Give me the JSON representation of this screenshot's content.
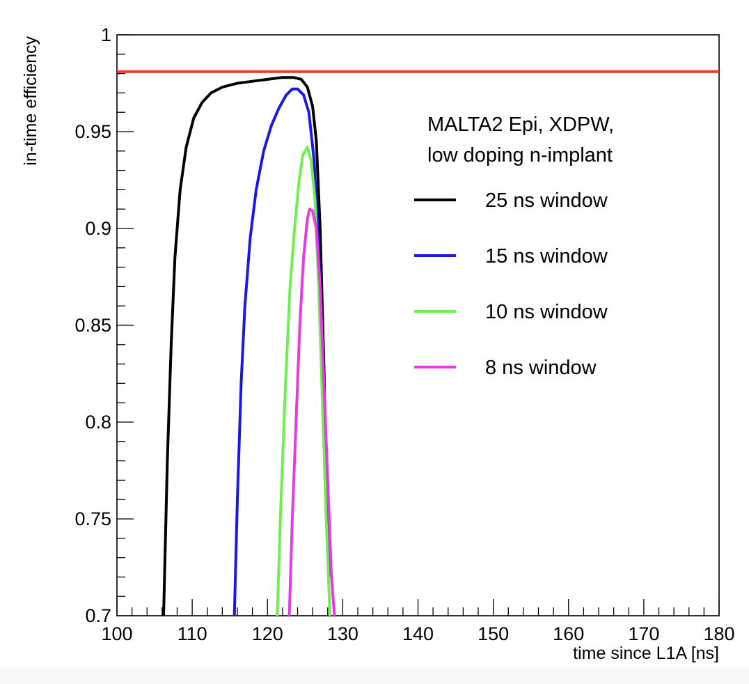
{
  "chart_data": {
    "type": "line",
    "xlabel": "time since L1A [ns]",
    "ylabel": "in-time efficiency",
    "xlim": [
      100,
      180
    ],
    "ylim": [
      0.7,
      1.0
    ],
    "x_ticks": [
      100,
      110,
      120,
      130,
      140,
      150,
      160,
      170,
      180
    ],
    "y_ticks": [
      0.7,
      0.75,
      0.8,
      0.85,
      0.9,
      0.95,
      1.0
    ],
    "x_tick_labels": [
      "100",
      "110",
      "120",
      "130",
      "140",
      "150",
      "160",
      "170",
      "180"
    ],
    "y_tick_labels": [
      "0.7",
      "0.75",
      "0.8",
      "0.85",
      "0.9",
      "0.95",
      "1"
    ],
    "legend_header": [
      "MALTA2 Epi, XDPW,",
      "low doping n-implant"
    ],
    "legend_position": "top-right",
    "grid": false,
    "reference_line": {
      "y": 0.981,
      "color": "#e8412c"
    },
    "series": [
      {
        "name": "25 ns window",
        "color": "#000000",
        "x": [
          106.2,
          106.7,
          107.2,
          107.7,
          108.4,
          109.2,
          110.2,
          111.3,
          112.5,
          114.0,
          116.0,
          118.0,
          120.0,
          122.0,
          123.5,
          124.5,
          125.3,
          126.0,
          126.5,
          127.0,
          127.5,
          128.0
        ],
        "y": [
          0.7,
          0.78,
          0.84,
          0.885,
          0.92,
          0.942,
          0.957,
          0.965,
          0.97,
          0.973,
          0.975,
          0.976,
          0.977,
          0.978,
          0.978,
          0.977,
          0.973,
          0.963,
          0.945,
          0.9,
          0.83,
          0.74
        ]
      },
      {
        "name": "15 ns window",
        "color": "#1818e8",
        "x": [
          115.6,
          116.0,
          116.5,
          117.0,
          117.7,
          118.5,
          119.5,
          120.5,
          121.5,
          122.5,
          123.3,
          124.0,
          124.8,
          125.5,
          126.2,
          126.8,
          127.3,
          127.8,
          128.2
        ],
        "y": [
          0.7,
          0.76,
          0.82,
          0.86,
          0.895,
          0.92,
          0.94,
          0.953,
          0.962,
          0.969,
          0.972,
          0.972,
          0.969,
          0.96,
          0.935,
          0.89,
          0.83,
          0.77,
          0.72
        ]
      },
      {
        "name": "10 ns window",
        "color": "#70f050",
        "x": [
          121.3,
          121.8,
          122.4,
          123.0,
          123.6,
          124.2,
          124.7,
          125.3,
          125.8,
          126.3,
          126.8,
          127.3,
          127.8,
          128.3
        ],
        "y": [
          0.7,
          0.76,
          0.82,
          0.87,
          0.9,
          0.925,
          0.938,
          0.942,
          0.935,
          0.915,
          0.87,
          0.81,
          0.75,
          0.7
        ]
      },
      {
        "name": "8 ns window",
        "color": "#e838e8",
        "x": [
          122.9,
          123.3,
          123.8,
          124.3,
          124.8,
          125.3,
          125.6,
          126.0,
          126.5,
          127.0,
          127.5,
          128.0,
          128.5,
          128.9
        ],
        "y": [
          0.7,
          0.75,
          0.8,
          0.85,
          0.885,
          0.905,
          0.91,
          0.909,
          0.9,
          0.87,
          0.82,
          0.77,
          0.72,
          0.7
        ]
      }
    ]
  }
}
